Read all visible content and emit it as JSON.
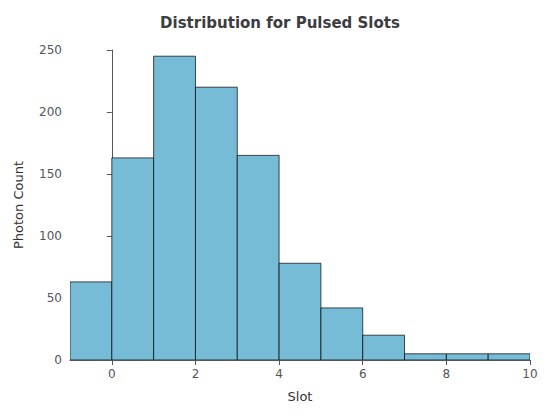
{
  "chart_data": {
    "type": "histogram",
    "title": "Distribution for Pulsed Slots",
    "xlabel": "Slot",
    "ylabel": "Photon Count",
    "bins": [
      -1,
      0,
      1,
      2,
      3,
      4,
      5,
      6,
      7,
      8,
      9,
      10
    ],
    "values": [
      63,
      163,
      245,
      220,
      165,
      78,
      42,
      20,
      5,
      5,
      5
    ],
    "color": "#77bcd6",
    "xlim": [
      -1,
      10
    ],
    "ylim": [
      0,
      250
    ],
    "xticks": [
      0,
      2,
      4,
      6,
      8,
      10
    ],
    "yticks": [
      0,
      50,
      100,
      150,
      200,
      250
    ],
    "grid": false
  }
}
